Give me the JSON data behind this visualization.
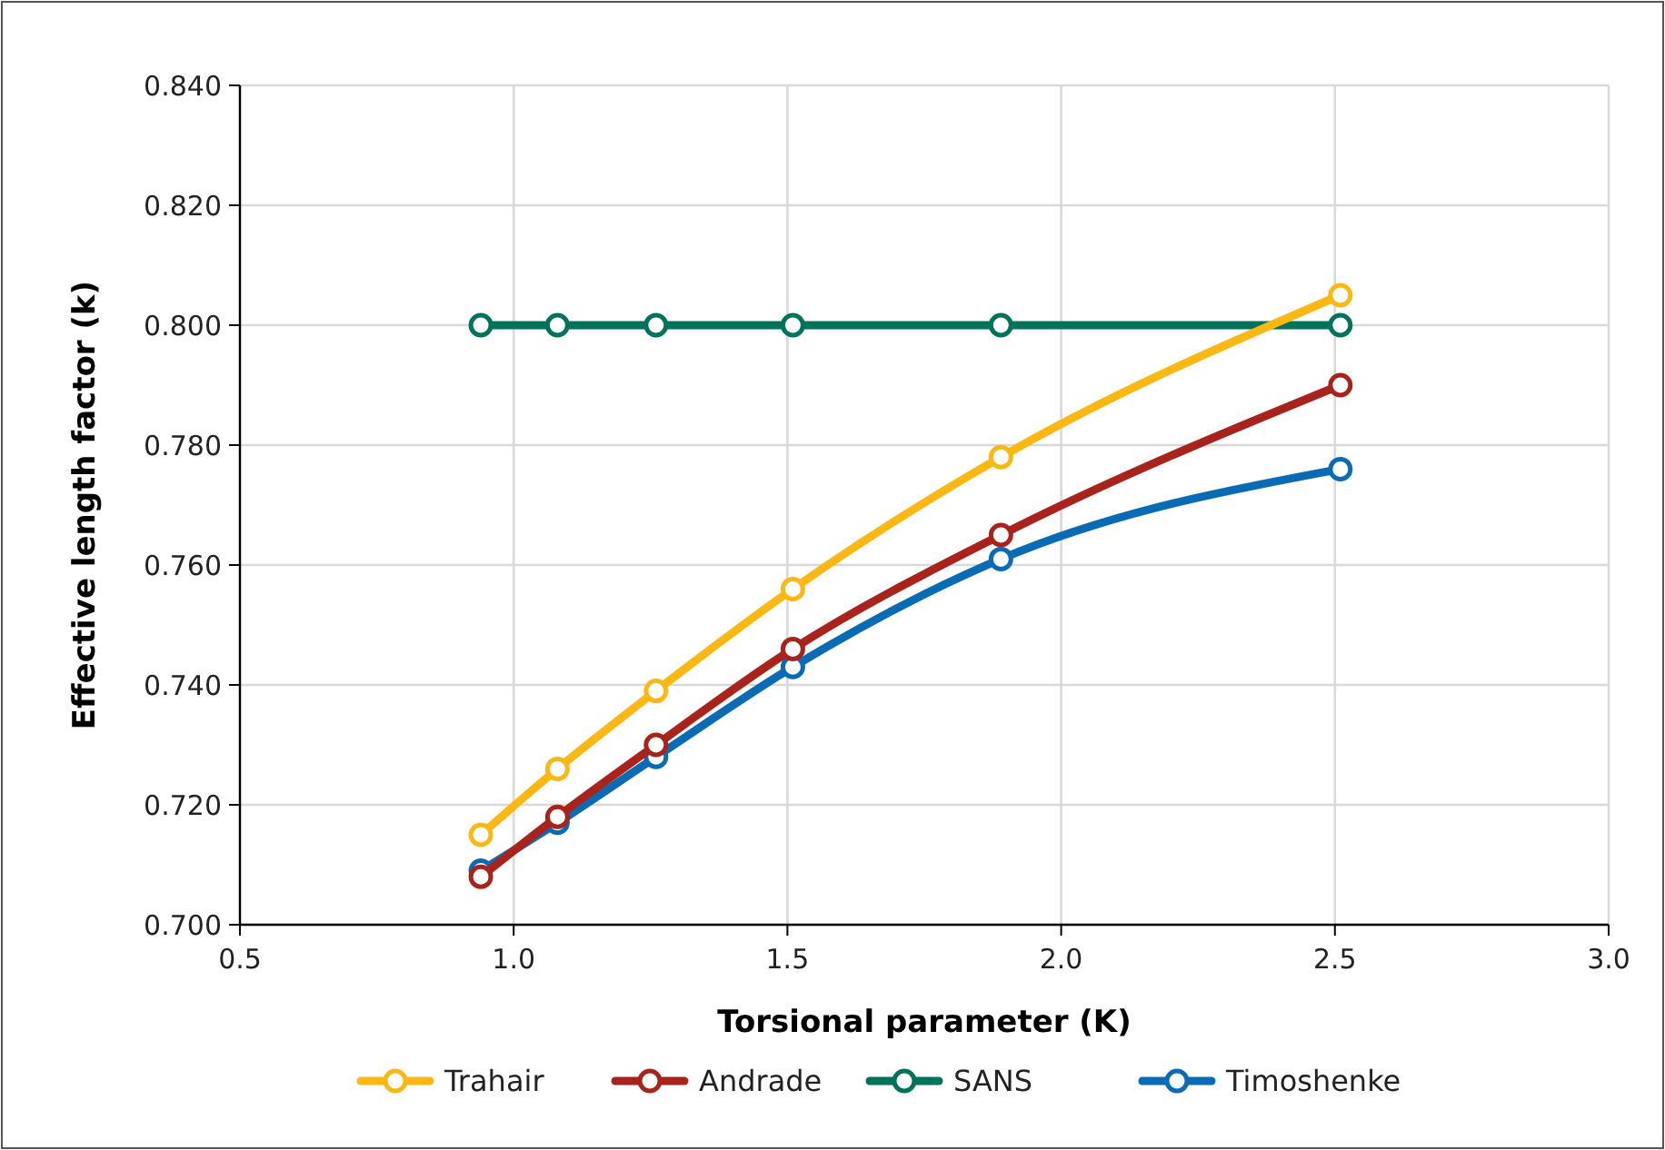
{
  "chart_data": {
    "type": "line",
    "xlabel": "Torsional parameter (K)",
    "ylabel": "Effective length factor (k)",
    "x": [
      0.94,
      1.08,
      1.26,
      1.51,
      1.89,
      2.51
    ],
    "series": [
      {
        "name": "Trahair",
        "color": "#fbb713",
        "values": [
          0.715,
          0.726,
          0.739,
          0.756,
          0.778,
          0.805
        ]
      },
      {
        "name": "Andrade",
        "color": "#a8231b",
        "values": [
          0.708,
          0.718,
          0.73,
          0.746,
          0.765,
          0.79
        ]
      },
      {
        "name": "SANS",
        "color": "#00735a",
        "values": [
          0.8,
          0.8,
          0.8,
          0.8,
          0.8,
          0.8
        ]
      },
      {
        "name": "Timoshenke",
        "color": "#0a6bb5",
        "values": [
          0.709,
          0.717,
          0.728,
          0.743,
          0.761,
          0.776
        ]
      }
    ],
    "xlim": [
      0.5,
      3.0
    ],
    "xticks": [
      {
        "value": 0.5,
        "label": "0.5"
      },
      {
        "value": 1.0,
        "label": "1.0"
      },
      {
        "value": 1.5,
        "label": "1.5"
      },
      {
        "value": 2.0,
        "label": "2.0"
      },
      {
        "value": 2.5,
        "label": "2.5"
      },
      {
        "value": 3.0,
        "label": "3.0"
      }
    ],
    "ylim": [
      0.7,
      0.84
    ],
    "yticks": [
      {
        "value": 0.7,
        "label": "0.700"
      },
      {
        "value": 0.72,
        "label": "0.720"
      },
      {
        "value": 0.74,
        "label": "0.740"
      },
      {
        "value": 0.76,
        "label": "0.760"
      },
      {
        "value": 0.78,
        "label": "0.780"
      },
      {
        "value": 0.8,
        "label": "0.800"
      },
      {
        "value": 0.82,
        "label": "0.820"
      },
      {
        "value": 0.84,
        "label": "0.840"
      }
    ],
    "grid": true,
    "legend": "bottom",
    "marker": "circle",
    "line_style": "solid"
  }
}
